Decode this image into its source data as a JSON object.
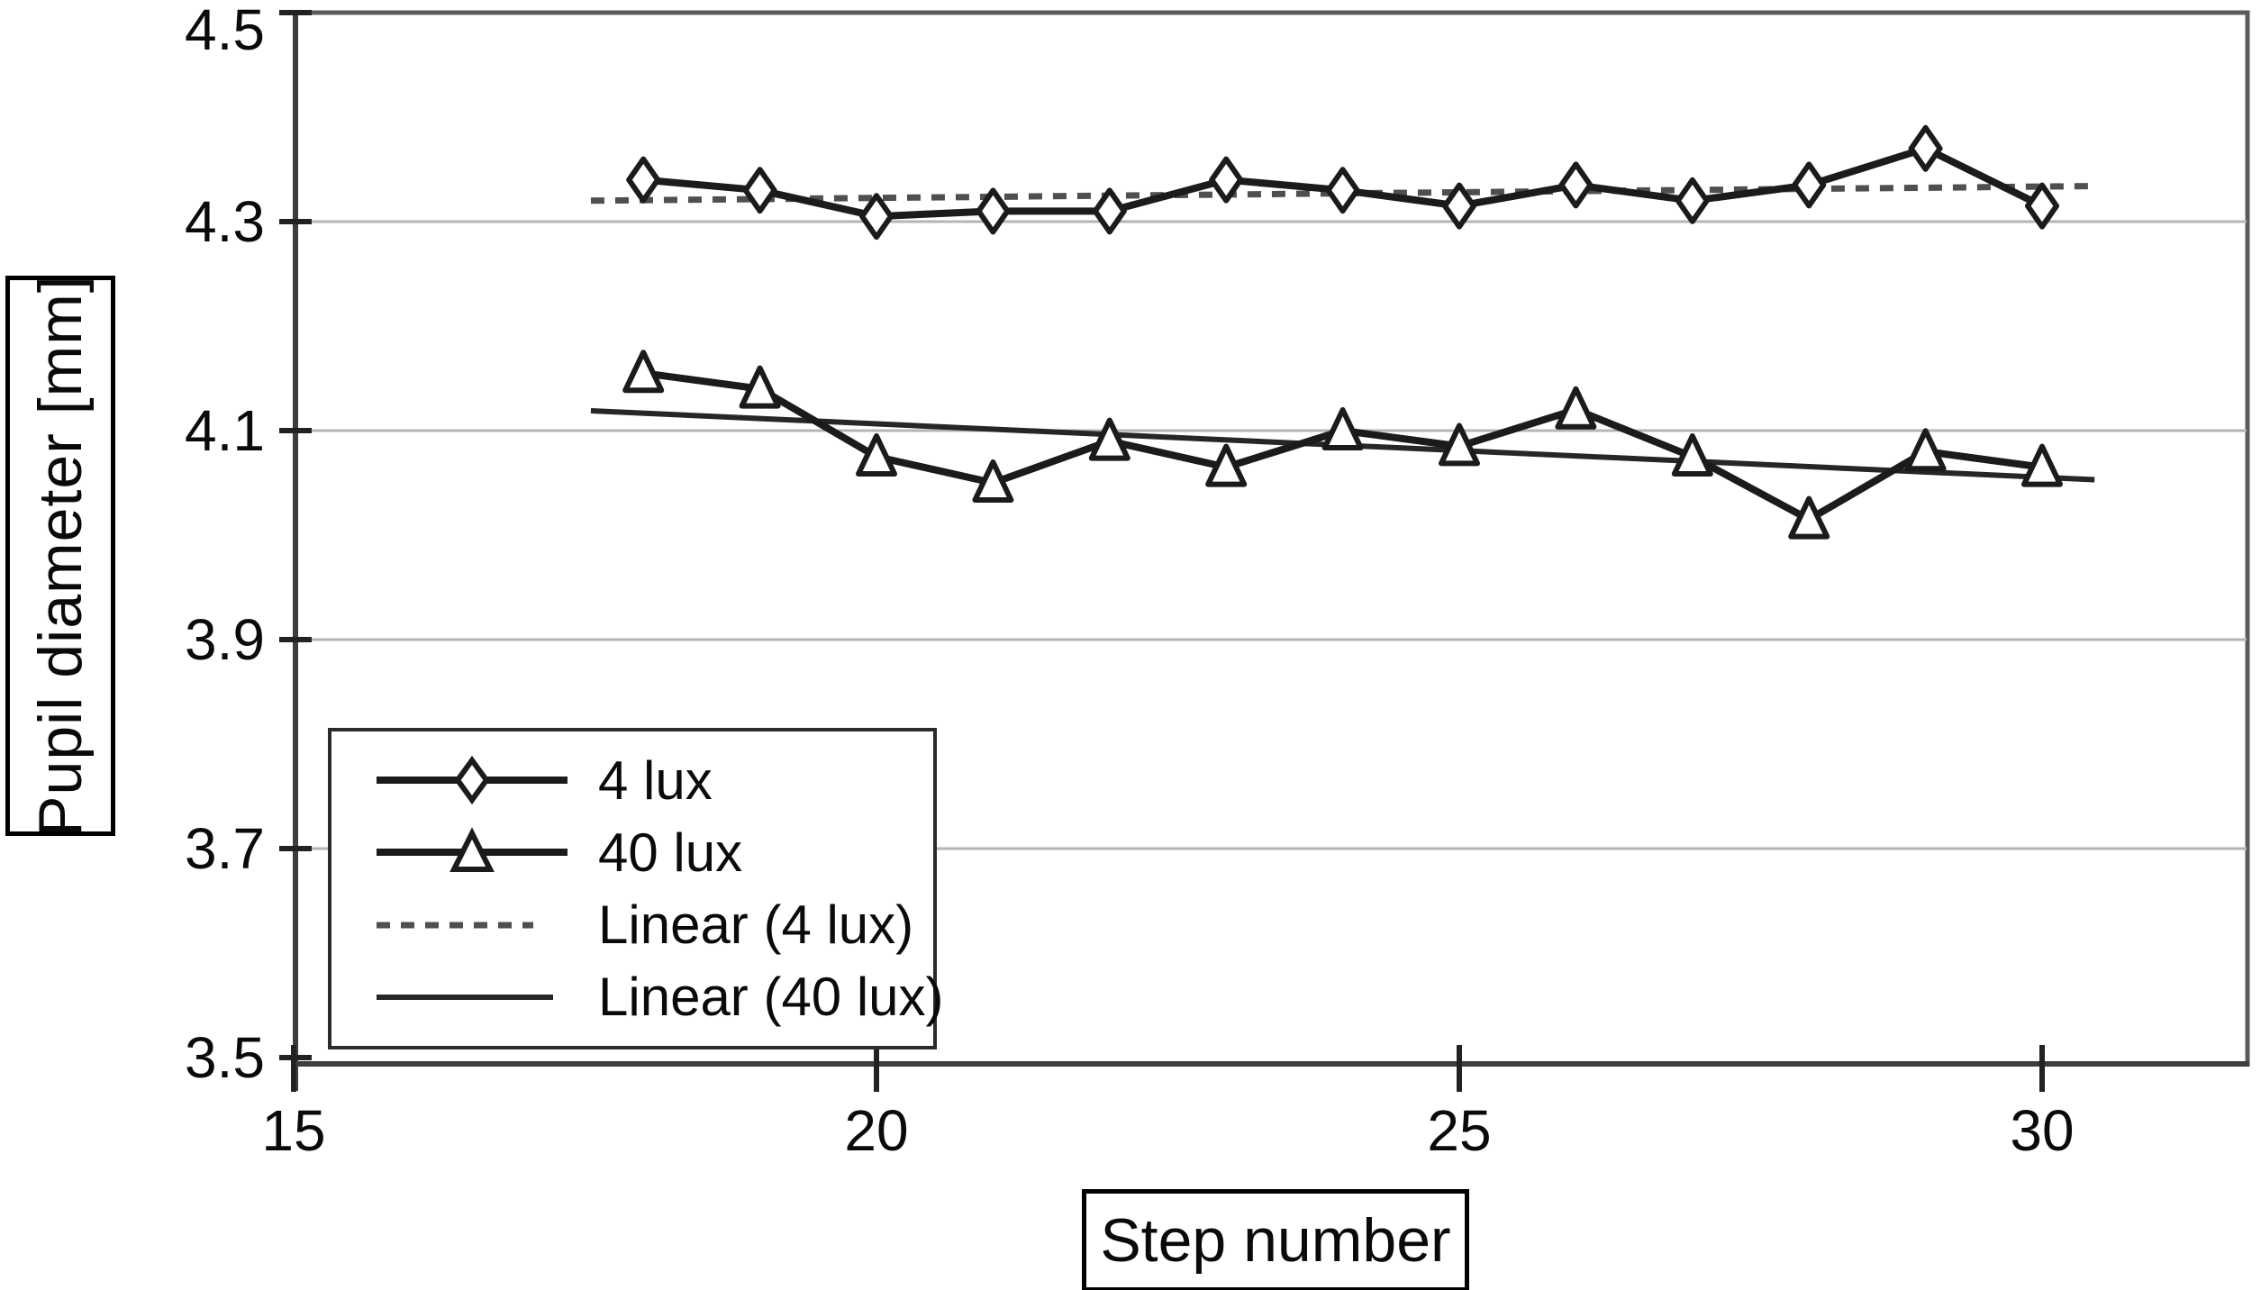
{
  "figure": {
    "type": "scatter-line-figure",
    "background": "#ffffff"
  },
  "y_axis": {
    "title": "Pupil diameter [mm]",
    "tick_labels": [
      "4.5",
      "4.3",
      "4.1",
      "3.9",
      "3.7",
      "3.5"
    ],
    "tick_values": [
      4.5,
      4.3,
      4.1,
      3.9,
      3.7,
      3.5
    ],
    "gridline_values": [
      4.3,
      4.1,
      3.9,
      3.7
    ],
    "range": [
      3.5,
      4.5
    ]
  },
  "x_axis": {
    "title": "Step number",
    "tick_labels": [
      "15",
      "20",
      "25",
      "30"
    ],
    "tick_values": [
      15,
      20,
      25,
      30
    ],
    "range": [
      15,
      31.8
    ]
  },
  "legend": {
    "items": [
      {
        "label": "4 lux",
        "marker": "diamond",
        "line": "solid"
      },
      {
        "label": "40 lux",
        "marker": "triangle",
        "line": "solid"
      },
      {
        "label": "Linear (4 lux)",
        "marker": "none",
        "line": "dashed"
      },
      {
        "label": "Linear (40 lux)",
        "marker": "none",
        "line": "solid-thin"
      }
    ]
  },
  "chart_data": {
    "type": "line",
    "title": "",
    "xlabel": "Step number",
    "ylabel": "Pupil diameter [mm]",
    "x": [
      18,
      19,
      20,
      21,
      22,
      23,
      24,
      25,
      26,
      27,
      28,
      29,
      30
    ],
    "series": [
      {
        "name": "4 lux",
        "marker": "diamond",
        "values": [
          4.34,
          4.33,
          4.305,
          4.31,
          4.31,
          4.34,
          4.33,
          4.315,
          4.335,
          4.32,
          4.335,
          4.37,
          4.315
        ]
      },
      {
        "name": "40 lux",
        "marker": "triangle",
        "values": [
          4.155,
          4.14,
          4.075,
          4.05,
          4.09,
          4.065,
          4.1,
          4.085,
          4.12,
          4.075,
          4.015,
          4.08,
          4.065
        ]
      }
    ],
    "trendlines": [
      {
        "name": "Linear (4 lux)",
        "style": "dashed",
        "x_start": 17.55,
        "x_end": 30.45,
        "y_start": 4.32,
        "y_end": 4.334
      },
      {
        "name": "Linear (40 lux)",
        "style": "solid",
        "x_start": 17.55,
        "x_end": 30.45,
        "y_start": 4.119,
        "y_end": 4.053
      }
    ],
    "xlim": [
      15,
      31.8
    ],
    "ylim": [
      3.49,
      4.5
    ],
    "grid": "horizontal",
    "legend_position": "lower-left-inside"
  },
  "colors": {
    "series_line": "#1b1b1b",
    "marker_fill": "#ffffff",
    "trend_4lux": "#4f4f4f",
    "trend_40lux": "#262626",
    "gridline": "#b5b5b5",
    "plot_border": "#5b5b5b",
    "axis_line": "#3d3d3d",
    "tick": "#222222",
    "text": "#0a0a0a"
  }
}
